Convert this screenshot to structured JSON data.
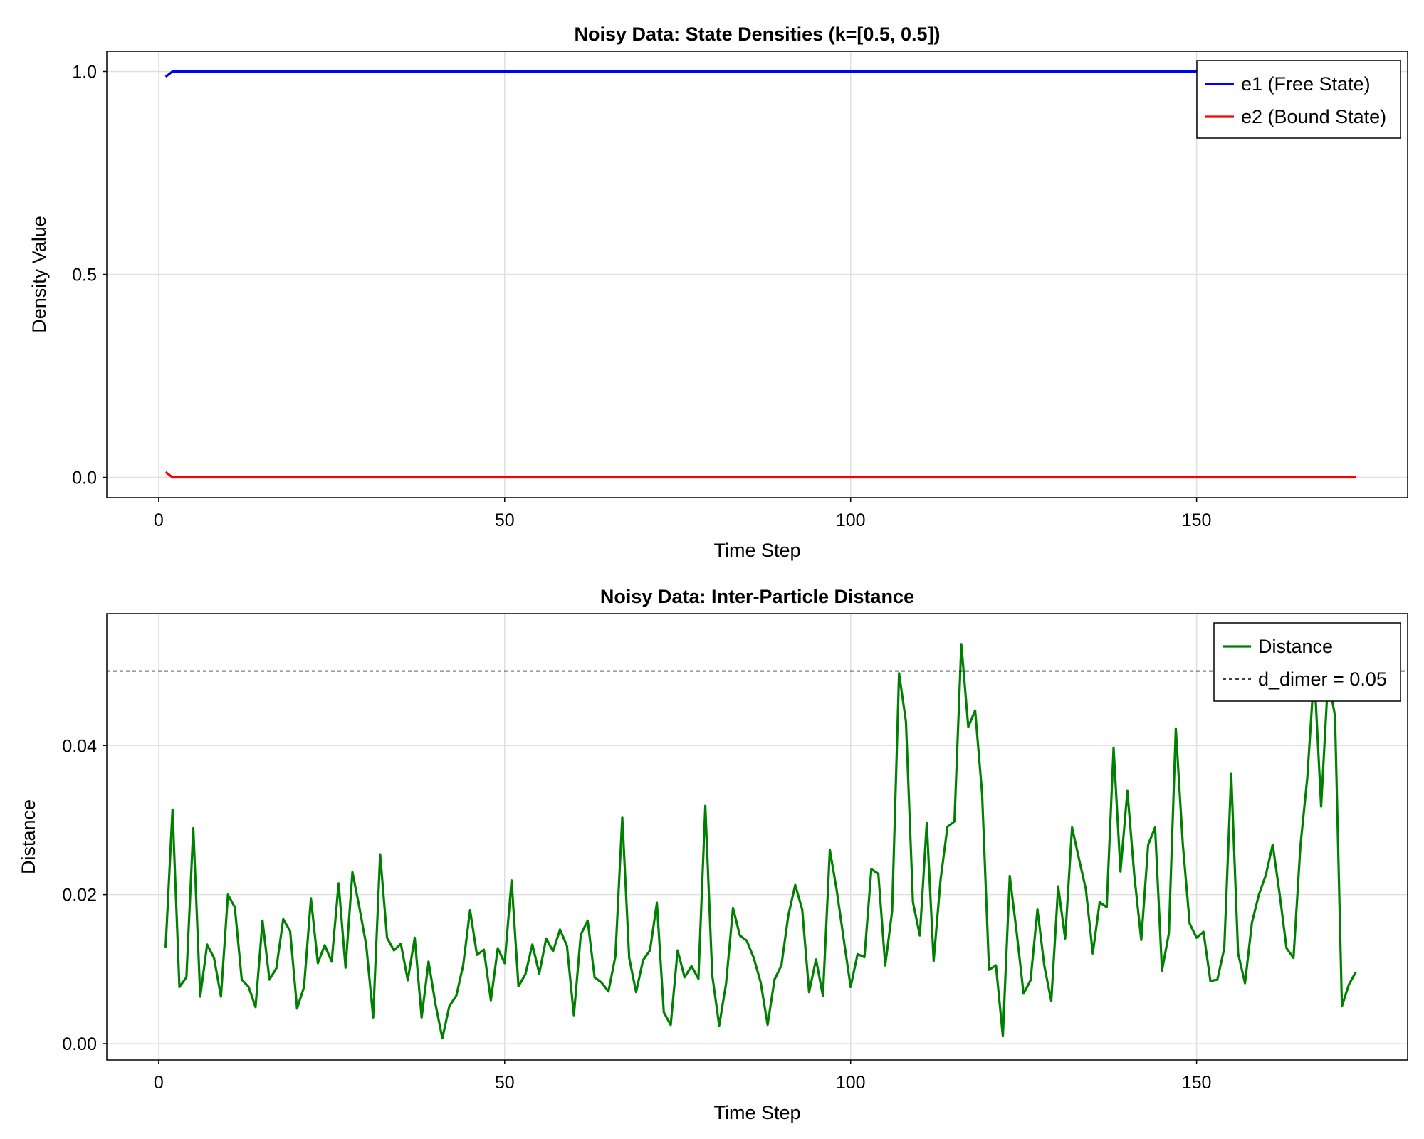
{
  "chart_data": [
    {
      "type": "line",
      "title": "Noisy Data: State Densities (k=[0.5, 0.5])",
      "xlabel": "Time Step",
      "ylabel": "Density Value",
      "xlim": [
        -7.5,
        180.5
      ],
      "ylim": [
        -0.05,
        1.05
      ],
      "xticks": [
        0,
        50,
        100,
        150
      ],
      "yticks": [
        0.0,
        0.5,
        1.0
      ],
      "xtick_labels": [
        "0",
        "50",
        "100",
        "150"
      ],
      "ytick_labels": [
        "0.0",
        "0.5",
        "1.0"
      ],
      "grid": true,
      "legend": "top-right",
      "series": [
        {
          "name": "e1 (Free State)",
          "color": "#0000ff",
          "x": [
            1,
            2,
            3,
            173
          ],
          "y": [
            0.987,
            1.0,
            1.0,
            1.0
          ]
        },
        {
          "name": "e2 (Bound State)",
          "color": "#ff0000",
          "x": [
            1,
            2,
            3,
            173
          ],
          "y": [
            0.013,
            0.0,
            0.0,
            0.0
          ]
        }
      ]
    },
    {
      "type": "line",
      "title": "Noisy Data: Inter-Particle Distance",
      "xlabel": "Time Step",
      "ylabel": "Distance",
      "xlim": [
        -7.5,
        180.5
      ],
      "ylim": [
        -0.0022,
        0.0577
      ],
      "xticks": [
        0,
        50,
        100,
        150
      ],
      "yticks": [
        0.0,
        0.02,
        0.04
      ],
      "xtick_labels": [
        "0",
        "50",
        "100",
        "150"
      ],
      "ytick_labels": [
        "0.00",
        "0.02",
        "0.04"
      ],
      "grid": true,
      "legend": "top-right",
      "series": [
        {
          "name": "Distance",
          "color": "#008000",
          "start_x": 1,
          "values": [
            0.0129,
            0.0314,
            0.0076,
            0.0089,
            0.0289,
            0.0063,
            0.0133,
            0.0115,
            0.0063,
            0.02,
            0.0183,
            0.0086,
            0.0076,
            0.0049,
            0.0165,
            0.0086,
            0.0101,
            0.0167,
            0.0151,
            0.0047,
            0.0076,
            0.0195,
            0.0108,
            0.0132,
            0.011,
            0.0215,
            0.0102,
            0.023,
            0.0183,
            0.0132,
            0.0035,
            0.0254,
            0.0142,
            0.0125,
            0.0134,
            0.0085,
            0.0142,
            0.0035,
            0.011,
            0.0053,
            0.0007,
            0.005,
            0.0064,
            0.0105,
            0.0179,
            0.0119,
            0.0126,
            0.0058,
            0.0128,
            0.0108,
            0.0219,
            0.0077,
            0.0093,
            0.0133,
            0.0094,
            0.0141,
            0.0124,
            0.0153,
            0.0131,
            0.0038,
            0.0146,
            0.0165,
            0.0089,
            0.0082,
            0.007,
            0.0117,
            0.0304,
            0.0115,
            0.0069,
            0.0112,
            0.0125,
            0.0189,
            0.0042,
            0.0025,
            0.0125,
            0.0089,
            0.0104,
            0.0087,
            0.0319,
            0.0092,
            0.0024,
            0.0081,
            0.0182,
            0.0145,
            0.0138,
            0.0115,
            0.0082,
            0.0025,
            0.0086,
            0.0105,
            0.0172,
            0.0213,
            0.018,
            0.0069,
            0.0113,
            0.0064,
            0.026,
            0.0205,
            0.014,
            0.0076,
            0.012,
            0.0116,
            0.0234,
            0.0228,
            0.0105,
            0.0178,
            0.0497,
            0.0432,
            0.019,
            0.0145,
            0.0296,
            0.0111,
            0.022,
            0.0291,
            0.0298,
            0.0536,
            0.0425,
            0.0447,
            0.0336,
            0.0099,
            0.0105,
            0.001,
            0.0225,
            0.0149,
            0.0067,
            0.0085,
            0.018,
            0.0104,
            0.0057,
            0.0211,
            0.0141,
            0.029,
            0.0248,
            0.0207,
            0.0121,
            0.019,
            0.0183,
            0.0397,
            0.0231,
            0.0339,
            0.0226,
            0.0139,
            0.0267,
            0.029,
            0.0098,
            0.0148,
            0.0423,
            0.0268,
            0.0161,
            0.0142,
            0.015,
            0.0084,
            0.0086,
            0.0128,
            0.0362,
            0.0121,
            0.0081,
            0.0162,
            0.02,
            0.0226,
            0.0267,
            0.0201,
            0.0128,
            0.0115,
            0.0265,
            0.0357,
            0.05,
            0.0318,
            0.049,
            0.044,
            0.005,
            0.0079,
            0.0096
          ]
        },
        {
          "name": "d_dimer = 0.05",
          "color": "#000000",
          "dashed": true,
          "hline": 0.05
        }
      ]
    }
  ]
}
